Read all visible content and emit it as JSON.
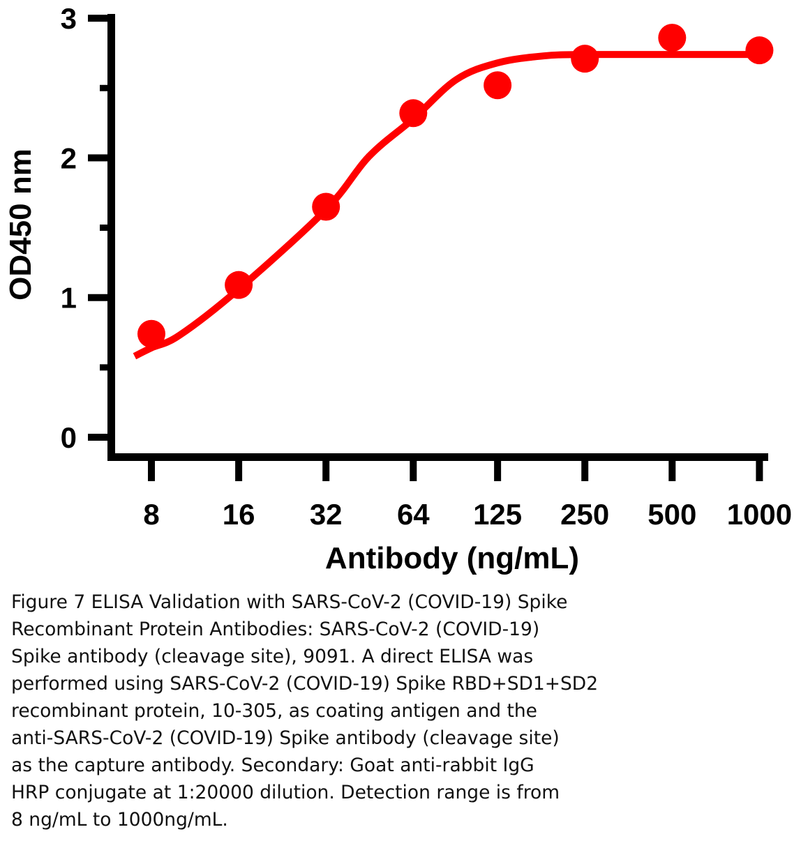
{
  "chart_data": {
    "type": "scatter",
    "xlabel": "Antibody (ng/mL)",
    "ylabel": "OD450 nm",
    "categories": [
      "8",
      "16",
      "32",
      "64",
      "125",
      "250",
      "500",
      "1000"
    ],
    "x": [
      8,
      16,
      32,
      64,
      125,
      250,
      500,
      1000
    ],
    "ylim": [
      0,
      3
    ],
    "yticks": [
      "0",
      "1",
      "2",
      "3"
    ],
    "x_scale": "log2",
    "grid": false,
    "series": [
      {
        "kind": "points",
        "values": [
          0.74,
          1.09,
          1.65,
          2.32,
          2.52,
          2.71,
          2.86,
          2.77
        ]
      },
      {
        "kind": "fit-curve",
        "x": [
          7,
          8,
          10,
          16,
          32,
          45,
          64,
          90,
          125,
          180,
          250,
          500,
          1000
        ],
        "y": [
          0.58,
          0.64,
          0.73,
          1.06,
          1.63,
          2.01,
          2.28,
          2.56,
          2.68,
          2.73,
          2.74,
          2.74,
          2.74
        ]
      }
    ],
    "color": "#ff0000"
  },
  "caption": "Figure 7 ELISA Validation with SARS-CoV-2 (COVID-19) Spike\nRecombinant Protein Antibodies: SARS-CoV-2 (COVID-19)\nSpike antibody (cleavage site), 9091. A direct ELISA was\nperformed using SARS-CoV-2 (COVID-19) Spike RBD+SD1+SD2\nrecombinant protein, 10-305, as coating antigen and the\nanti-SARS-CoV-2 (COVID-19) Spike antibody (cleavage site)\nas the capture antibody. Secondary: Goat anti-rabbit IgG\nHRP conjugate at 1:20000 dilution. Detection range is from\n8 ng/mL to 1000ng/mL."
}
